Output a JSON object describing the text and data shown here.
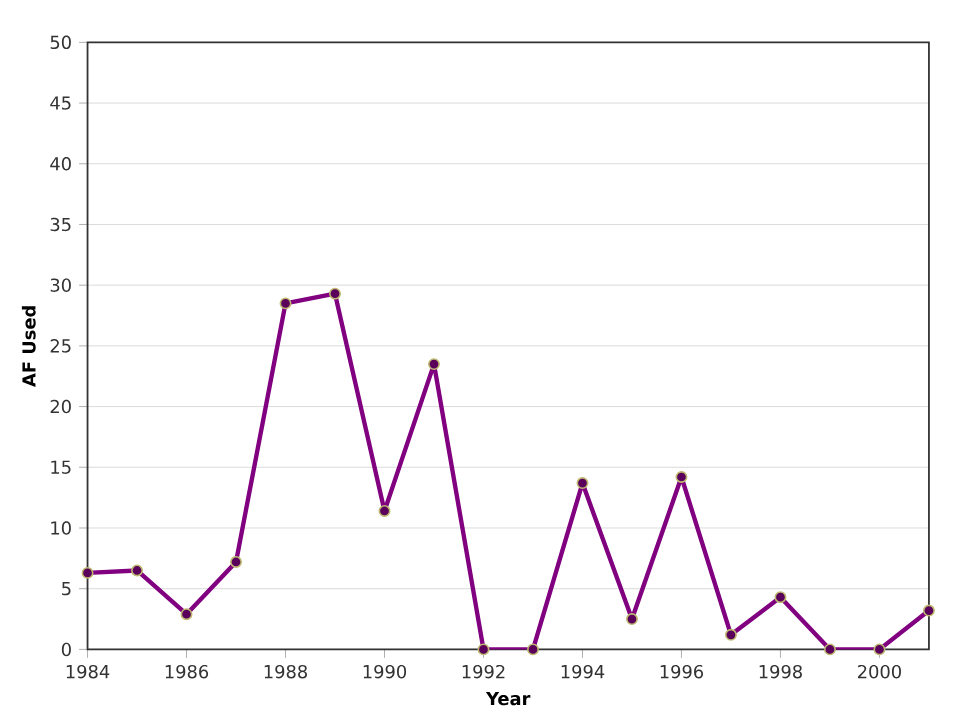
{
  "chart_data": {
    "type": "line",
    "xlabel": "Year",
    "ylabel": "AF Used",
    "x": [
      1984,
      1985,
      1986,
      1987,
      1988,
      1989,
      1990,
      1991,
      1992,
      1993,
      1994,
      1995,
      1996,
      1997,
      1998,
      1999,
      2000,
      2001
    ],
    "values": [
      6.3,
      6.5,
      2.9,
      7.2,
      28.5,
      29.3,
      11.4,
      23.5,
      0,
      0,
      13.7,
      2.5,
      14.2,
      1.2,
      4.3,
      0,
      0,
      3.2
    ],
    "color": "#800080",
    "marker": "circle",
    "line_style": "solid",
    "grid": "y",
    "xlim": [
      1984,
      2001
    ],
    "xticks": [
      1984,
      1986,
      1988,
      1990,
      1992,
      1994,
      1996,
      1998,
      2000
    ],
    "ylim": [
      0,
      50
    ],
    "yticks": [
      0,
      5,
      10,
      15,
      20,
      25,
      30,
      35,
      40,
      45,
      50
    ]
  }
}
